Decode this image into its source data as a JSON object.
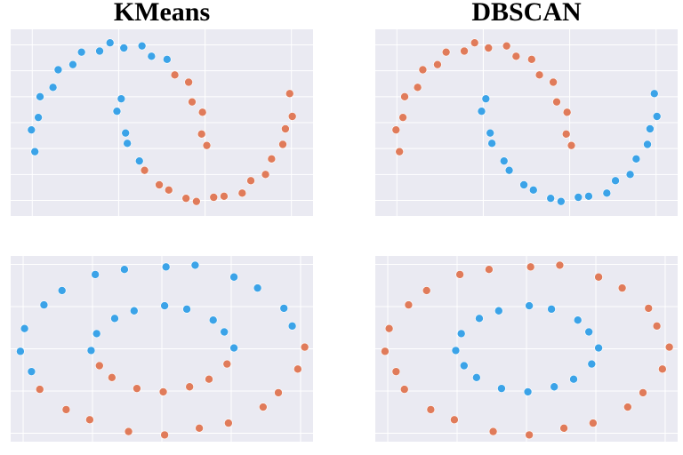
{
  "chart_data": [
    {
      "type": "scatter",
      "title": "KMeans",
      "xlim": [
        -1.25,
        2.25
      ],
      "ylim": [
        -0.65,
        1.15
      ],
      "xticks": [
        -1,
        0,
        1,
        2
      ],
      "yticks": [
        -0.5,
        -0.25,
        0,
        0.25,
        0.5,
        0.75,
        1.0
      ],
      "grid": true,
      "series": [
        {
          "color": "#3ba3e8",
          "x": [
            0.56,
            0.38,
            0.27,
            0.06,
            -0.1,
            -0.22,
            -0.43,
            -0.53,
            -0.7,
            -0.76,
            -0.91,
            -0.93,
            -1.01,
            -0.97,
            0.03,
            -0.02,
            0.08,
            0.1,
            0.24
          ],
          "values": [
            0.86,
            0.89,
            0.99,
            0.97,
            1.02,
            0.94,
            0.93,
            0.81,
            0.76,
            0.59,
            0.5,
            0.3,
            0.18,
            -0.03,
            0.48,
            0.36,
            0.15,
            0.05,
            -0.12
          ]
        },
        {
          "color": "#e07b5a",
          "x": [
            1.02,
            0.96,
            0.97,
            0.85,
            0.81,
            0.65,
            0.3,
            0.47,
            0.58,
            0.78,
            0.9,
            1.1,
            1.22,
            1.43,
            1.53,
            1.7,
            1.77,
            1.9,
            1.93,
            2.01,
            1.98
          ],
          "values": [
            0.03,
            0.14,
            0.35,
            0.45,
            0.64,
            0.71,
            -0.21,
            -0.35,
            -0.4,
            -0.48,
            -0.51,
            -0.47,
            -0.46,
            -0.43,
            -0.31,
            -0.25,
            -0.1,
            0.04,
            0.19,
            0.31,
            0.53
          ]
        }
      ]
    },
    {
      "type": "scatter",
      "title": "DBSCAN",
      "xlim": [
        -1.25,
        2.25
      ],
      "ylim": [
        -0.65,
        1.15
      ],
      "xticks": [
        -1,
        0,
        1,
        2
      ],
      "yticks": [
        -0.5,
        -0.25,
        0,
        0.25,
        0.5,
        0.75,
        1.0
      ],
      "grid": true,
      "series": [
        {
          "color": "#e07b5a",
          "x": [
            1.02,
            0.96,
            0.97,
            0.85,
            0.81,
            0.65,
            0.56,
            0.38,
            0.27,
            0.06,
            -0.1,
            -0.22,
            -0.43,
            -0.53,
            -0.7,
            -0.76,
            -0.91,
            -0.93,
            -1.01,
            -0.97
          ],
          "values": [
            0.03,
            0.14,
            0.35,
            0.45,
            0.64,
            0.71,
            0.86,
            0.89,
            0.99,
            0.97,
            1.02,
            0.94,
            0.93,
            0.81,
            0.76,
            0.59,
            0.5,
            0.3,
            0.18,
            -0.03
          ]
        },
        {
          "color": "#3ba3e8",
          "x": [
            0.03,
            -0.02,
            0.08,
            0.1,
            0.24,
            0.3,
            0.47,
            0.58,
            0.78,
            0.9,
            1.1,
            1.22,
            1.43,
            1.53,
            1.7,
            1.77,
            1.9,
            1.93,
            2.01,
            1.98
          ],
          "values": [
            0.48,
            0.36,
            0.15,
            0.05,
            -0.12,
            -0.21,
            -0.35,
            -0.4,
            -0.48,
            -0.51,
            -0.47,
            -0.46,
            -0.43,
            -0.31,
            -0.25,
            -0.1,
            0.04,
            0.19,
            0.31,
            0.53
          ]
        }
      ]
    },
    {
      "type": "scatter",
      "xlim": [
        -1.09,
        1.09
      ],
      "ylim": [
        -1.1,
        1.1
      ],
      "xticks": [
        -1,
        -0.5,
        0,
        0.5,
        1
      ],
      "yticks": [
        -1,
        -0.5,
        0,
        0.5,
        1
      ],
      "grid": true,
      "series": [
        {
          "color": "#3ba3e8",
          "x": [
            0.94,
            0.88,
            0.69,
            0.52,
            0.24,
            0.03,
            -0.27,
            -0.48,
            -0.72,
            -0.85,
            -0.99,
            -1.02,
            -0.94,
            0.52,
            0.45,
            0.37,
            0.18,
            0.02,
            -0.2,
            -0.34,
            -0.47,
            -0.51
          ],
          "values": [
            0.27,
            0.48,
            0.72,
            0.85,
            0.99,
            0.97,
            0.94,
            0.88,
            0.69,
            0.52,
            0.24,
            -0.03,
            -0.27,
            0.01,
            0.2,
            0.34,
            0.47,
            0.51,
            0.45,
            0.36,
            0.18,
            -0.02
          ]
        },
        {
          "color": "#e07b5a",
          "x": [
            1.03,
            -0.88,
            -0.69,
            -0.52,
            -0.24,
            0.02,
            0.27,
            0.48,
            0.73,
            0.84,
            0.98,
            -0.45,
            -0.36,
            -0.18,
            0.01,
            0.2,
            0.34,
            0.47
          ],
          "values": [
            0.02,
            -0.48,
            -0.72,
            -0.84,
            -0.98,
            -1.02,
            -0.94,
            -0.88,
            -0.69,
            -0.52,
            -0.24,
            -0.2,
            -0.34,
            -0.47,
            -0.51,
            -0.45,
            -0.36,
            -0.18
          ]
        }
      ]
    },
    {
      "type": "scatter",
      "xlim": [
        -1.09,
        1.09
      ],
      "ylim": [
        -1.1,
        1.1
      ],
      "xticks": [
        -1,
        -0.5,
        0,
        0.5,
        1
      ],
      "yticks": [
        -1,
        -0.5,
        0,
        0.5,
        1
      ],
      "grid": true,
      "series": [
        {
          "color": "#e07b5a",
          "x": [
            1.03,
            0.94,
            0.88,
            0.69,
            0.52,
            0.24,
            0.03,
            -0.27,
            -0.48,
            -0.72,
            -0.85,
            -0.99,
            -1.02,
            -0.94,
            -0.88,
            -0.69,
            -0.52,
            -0.24,
            0.02,
            0.27,
            0.48,
            0.73,
            0.84,
            0.98
          ],
          "values": [
            0.02,
            0.27,
            0.48,
            0.72,
            0.85,
            0.99,
            0.97,
            0.94,
            0.88,
            0.69,
            0.52,
            0.24,
            -0.03,
            -0.27,
            -0.48,
            -0.72,
            -0.84,
            -0.98,
            -1.02,
            -0.94,
            -0.88,
            -0.69,
            -0.52,
            -0.24
          ]
        },
        {
          "color": "#3ba3e8",
          "x": [
            0.52,
            0.45,
            0.37,
            0.18,
            0.02,
            -0.2,
            -0.34,
            -0.47,
            -0.51,
            -0.45,
            -0.36,
            -0.18,
            0.01,
            0.2,
            0.34,
            0.47
          ],
          "values": [
            0.01,
            0.2,
            0.34,
            0.47,
            0.51,
            0.45,
            0.36,
            0.18,
            -0.02,
            -0.2,
            -0.34,
            -0.47,
            -0.51,
            -0.45,
            -0.36,
            -0.18
          ]
        }
      ]
    }
  ]
}
